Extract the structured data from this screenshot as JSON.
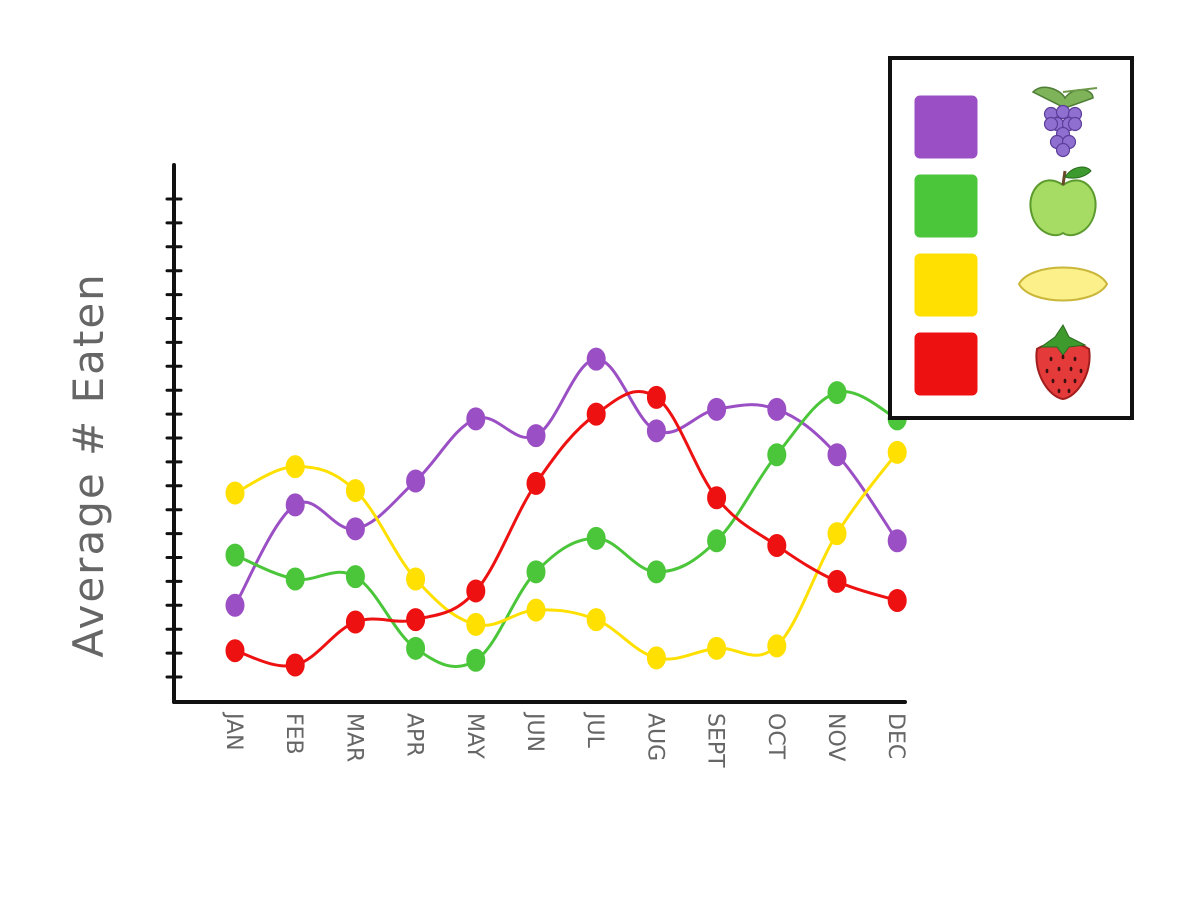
{
  "chart_data": {
    "type": "line",
    "title": "",
    "xlabel": "",
    "ylabel": "Average # Eaten",
    "categories": [
      "JAN",
      "FEB",
      "MAR",
      "APR",
      "MAY",
      "JUN",
      "JUL",
      "AUG",
      "SEPT",
      "OCT",
      "NOV",
      "DEC"
    ],
    "y_tick_count": 20,
    "ylim": [
      0,
      20
    ],
    "grid": false,
    "legend_position": "top-right",
    "series": [
      {
        "color": "#9b4fc4",
        "icon": "grapes-icon",
        "values": [
          3.0,
          7.2,
          6.2,
          8.2,
          10.8,
          10.1,
          13.3,
          10.3,
          11.2,
          11.2,
          9.3,
          5.7
        ]
      },
      {
        "color": "#4bc63a",
        "icon": "green-apple-icon",
        "values": [
          5.1,
          4.1,
          4.2,
          1.2,
          0.7,
          4.4,
          5.8,
          4.4,
          5.7,
          9.3,
          11.9,
          10.8
        ]
      },
      {
        "color": "#ffe000",
        "icon": "lemon-icon",
        "values": [
          7.7,
          8.8,
          7.8,
          4.1,
          2.2,
          2.8,
          2.4,
          0.8,
          1.2,
          1.3,
          6.0,
          9.4
        ]
      },
      {
        "color": "#ee1111",
        "icon": "strawberry-icon",
        "values": [
          1.1,
          0.5,
          2.3,
          2.4,
          3.6,
          8.1,
          11.0,
          11.7,
          7.5,
          5.5,
          4.0,
          3.2
        ]
      }
    ]
  }
}
